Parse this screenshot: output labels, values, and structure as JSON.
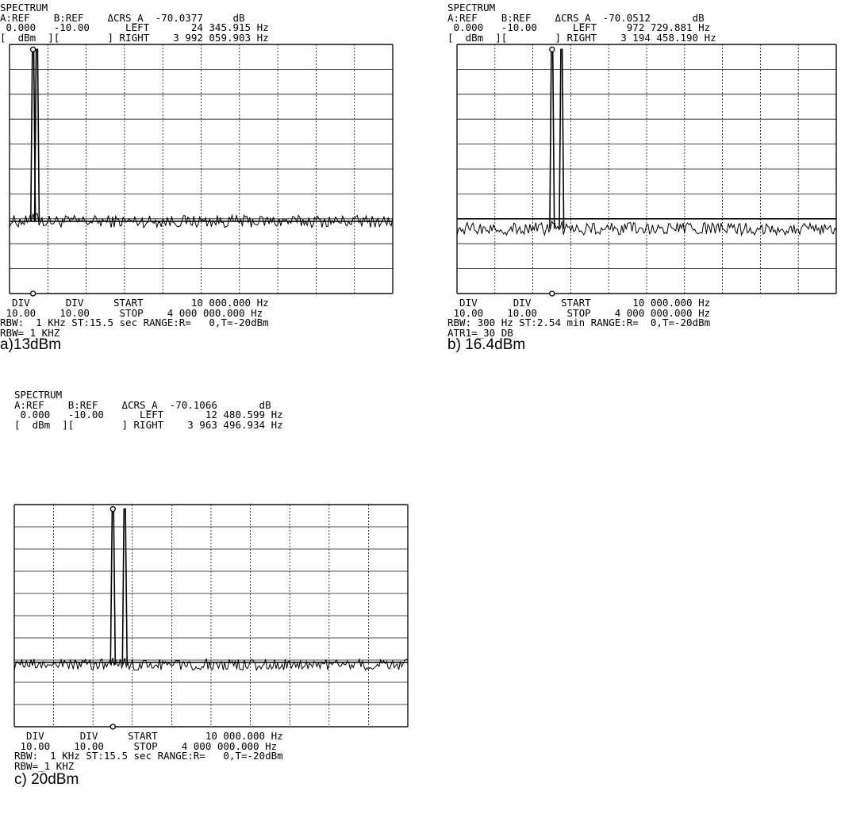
{
  "colors": {
    "trace": "#000000",
    "grid": "#111111",
    "background": "#ffffff"
  },
  "panels": [
    {
      "id": "a",
      "header_lines": [
        "SPECTRUM",
        "A:REF    B:REF    ΔCRS_A  -70.0377     dB",
        " 0.000   -10.00      LEFT       24 345.915 Hz",
        "[  dBm  ][        ] RIGHT    3 992 059.903 Hz"
      ],
      "footer_lines": [
        "  DIV      DIV     START        10 000.000 Hz",
        " 10.00    10.00     STOP    4 000 000.000 Hz",
        "RBW:  1 KHz ST:15.5 sec RANGE:R=   0,T=-20dBm",
        "RBW=_1 KHZ"
      ],
      "caption": "a)13dBm"
    },
    {
      "id": "b",
      "header_lines": [
        "SPECTRUM",
        "A:REF    B:REF    ΔCRS_A  -70.0512       dB",
        " 0.000   -10.00      LEFT     972 729.881 Hz",
        "[  dBm  ][        ] RIGHT    3 194 458.190 Hz"
      ],
      "footer_lines": [
        "  DIV      DIV     START       10 000.000 Hz",
        " 10.00    10.00     STOP    4 000 000.000 Hz",
        "RBW: 300 Hz ST:2.54 min RANGE:R=  0,T=-20dBm",
        "ATR1=_30 DB"
      ],
      "caption": "b) 16.4dBm"
    },
    {
      "id": "c",
      "header_lines": [
        "SPECTRUM",
        "A:REF    B:REF    ΔCRS_A  -70.1066       dB",
        " 0.000   -10.00      LEFT       12 480.599 Hz",
        "[  dBm  ][        ] RIGHT    3 963 496.934 Hz"
      ],
      "footer_lines": [
        "  DIV      DIV     START        10 000.000 Hz",
        " 10.00    10.00     STOP    4 000 000.000 Hz",
        "RBW:  1 KHz ST:15.5 sec RANGE:R=   0,T=-20dBm",
        "RBW=_1 KHZ"
      ],
      "caption": "c) 20dBm"
    }
  ],
  "chart_data": [
    {
      "type": "line",
      "title": "SPECTRUM",
      "x_start_hz": 10000,
      "x_stop_hz": 4000000,
      "ref_level_dbm": 0,
      "db_per_div": 10,
      "ylim": [
        -100,
        0
      ],
      "grid": true,
      "x_divisions": 10,
      "y_divisions": 10,
      "cursor_delta_db": -70.0377,
      "cursor_left_hz": 24345.915,
      "cursor_right_hz": 3992059.903,
      "noise_floor_dbm": -71,
      "reference_line_dbm": -71,
      "series": [
        {
          "values_dbm": [
            [
              10000,
              -71
            ],
            [
              250000,
              -71
            ],
            [
              255000,
              -2
            ],
            [
              265000,
              -71
            ],
            [
              290000,
              -71
            ],
            [
              295000,
              -2
            ],
            [
              305000,
              -71
            ],
            [
              4000000,
              -71
            ]
          ]
        }
      ]
    },
    {
      "type": "line",
      "title": "SPECTRUM",
      "x_start_hz": 10000,
      "x_stop_hz": 4000000,
      "ref_level_dbm": 0,
      "db_per_div": 10,
      "ylim": [
        -100,
        0
      ],
      "grid": true,
      "x_divisions": 10,
      "y_divisions": 10,
      "cursor_delta_db": -70.0512,
      "cursor_left_hz": 972729.881,
      "cursor_right_hz": 3194458.19,
      "noise_floor_dbm": -74,
      "reference_line_dbm": -70,
      "series": [
        {
          "values_dbm": [
            [
              10000,
              -74
            ],
            [
              1000000,
              -74
            ],
            [
              1010000,
              -2
            ],
            [
              1020000,
              -74
            ],
            [
              1100000,
              -74
            ],
            [
              1110000,
              -2
            ],
            [
              1120000,
              -74
            ],
            [
              4000000,
              -74
            ]
          ]
        }
      ]
    },
    {
      "type": "line",
      "title": "SPECTRUM",
      "x_start_hz": 10000,
      "x_stop_hz": 4000000,
      "ref_level_dbm": 0,
      "db_per_div": 10,
      "ylim": [
        -100,
        0
      ],
      "grid": true,
      "x_divisions": 10,
      "y_divisions": 10,
      "cursor_delta_db": -70.1066,
      "cursor_left_hz": 12480.599,
      "cursor_right_hz": 3963496.934,
      "noise_floor_dbm": -72,
      "reference_line_dbm": -71,
      "series": [
        {
          "values_dbm": [
            [
              10000,
              -72
            ],
            [
              1000000,
              -72
            ],
            [
              1010000,
              -2
            ],
            [
              1020000,
              -72
            ],
            [
              1120000,
              -72
            ],
            [
              1130000,
              -2
            ],
            [
              1140000,
              -72
            ],
            [
              4000000,
              -72
            ]
          ]
        }
      ]
    }
  ]
}
